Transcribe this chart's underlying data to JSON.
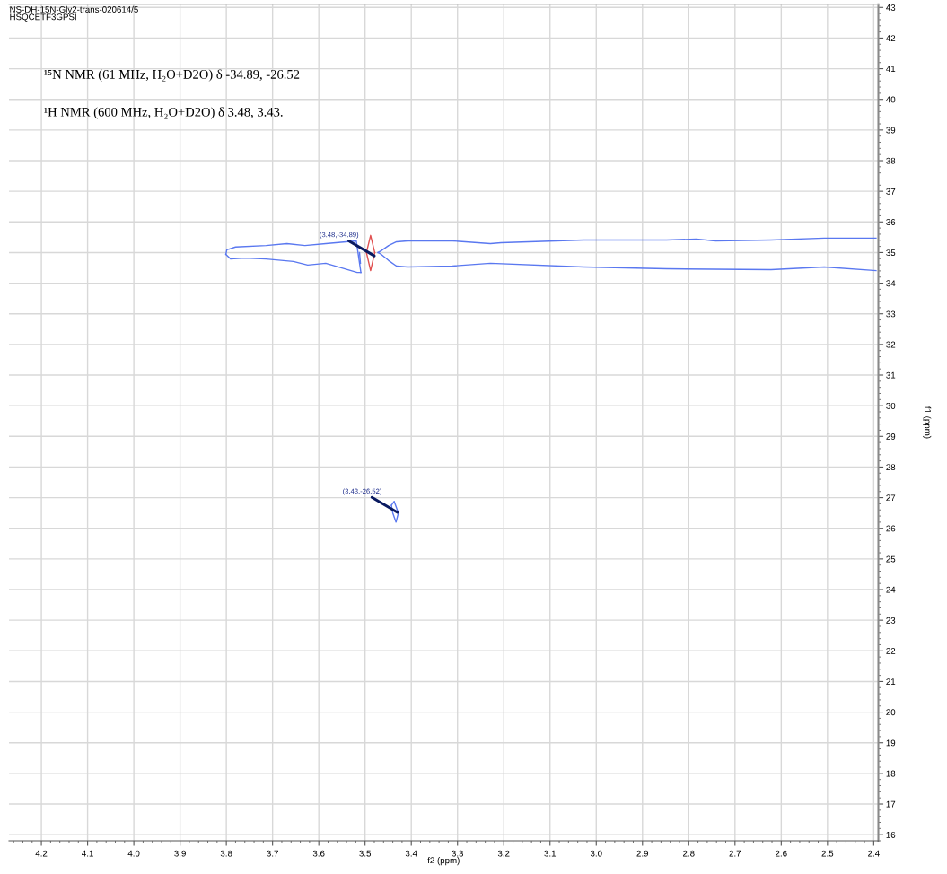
{
  "chart_data": {
    "type": "line",
    "xlabel": "f2 (ppm)",
    "ylabel": "f1 (ppm)",
    "xlim": [
      4.27,
      2.39
    ],
    "xticks": [
      4.2,
      4.1,
      {
        "value": 4.0,
        "label": "4.0"
      },
      3.9,
      3.8,
      3.7,
      3.6,
      3.5,
      3.4,
      3.3,
      3.2,
      3.1,
      {
        "value": 3.0,
        "label": "3.0"
      },
      2.9,
      2.8,
      2.7,
      2.6,
      2.5,
      2.4
    ],
    "ylim": [
      15.8,
      43.1
    ],
    "yticks": [
      16,
      17,
      18,
      19,
      20,
      21,
      22,
      23,
      24,
      25,
      26,
      27,
      28,
      29,
      30,
      31,
      32,
      33,
      34,
      35,
      36,
      37,
      38,
      39,
      40,
      41,
      42,
      43
    ],
    "grid": true,
    "marker": "none",
    "line_style": "solid",
    "series": [
      {
        "color": "#5a78f0",
        "x": [
          3.801,
          3.799,
          3.78,
          3.714,
          3.669,
          3.63,
          3.585,
          3.519,
          3.509
        ],
        "values": [
          34.94,
          35.09,
          35.18,
          35.23,
          35.29,
          35.23,
          35.29,
          35.38,
          34.35
        ]
      },
      {
        "color": "#5a78f0",
        "x": [
          3.801,
          3.791,
          3.76,
          3.714,
          3.655,
          3.624,
          3.585,
          3.517,
          3.509
        ],
        "values": [
          34.94,
          34.79,
          34.82,
          34.79,
          34.71,
          34.59,
          34.65,
          34.35,
          34.35
        ]
      },
      {
        "color": "#5a78f0",
        "x": [
          3.472,
          3.465,
          3.449,
          3.432,
          3.408,
          3.311,
          3.229,
          3.206,
          3.027,
          2.848,
          2.784,
          2.743,
          2.622,
          2.507,
          2.395
        ],
        "values": [
          35.0,
          35.06,
          35.23,
          35.35,
          35.38,
          35.38,
          35.29,
          35.32,
          35.41,
          35.41,
          35.44,
          35.38,
          35.41,
          35.47,
          35.47
        ]
      },
      {
        "color": "#5a78f0",
        "x": [
          3.472,
          3.465,
          3.449,
          3.432,
          3.408,
          3.311,
          3.229,
          3.027,
          2.848,
          2.622,
          2.507,
          2.395
        ],
        "values": [
          35.0,
          34.94,
          34.74,
          34.56,
          34.53,
          34.56,
          34.65,
          34.53,
          34.47,
          34.44,
          34.53,
          34.41
        ]
      },
      {
        "color": "#5a78f0",
        "x": [
          3.512,
          3.51
        ],
        "values": [
          35.0,
          34.65
        ]
      },
      {
        "color": "#e05050",
        "x": [
          3.497,
          3.488,
          3.479
        ],
        "values": [
          35.0,
          35.56,
          35.0
        ]
      },
      {
        "color": "#e05050",
        "x": [
          3.497,
          3.488,
          3.479
        ],
        "values": [
          35.0,
          34.41,
          35.0
        ]
      },
      {
        "color": "#5a78f0",
        "x": [
          3.443,
          3.437,
          3.428
        ],
        "values": [
          26.75,
          26.88,
          26.5
        ]
      },
      {
        "color": "#5a78f0",
        "x": [
          3.443,
          3.44,
          3.433,
          3.428
        ],
        "values": [
          26.75,
          26.5,
          26.2,
          26.5
        ]
      }
    ],
    "annotations": [
      "NS-DH-15N-Gly2-trans-020614/5",
      "HSQCETF3GPSI",
      "¹⁵N NMR (61 MHz, H₂O+D2O) δ -34.89, -26.52",
      "¹H NMR (600 MHz, H₂O+D2O) δ 3.48, 3.43.",
      {
        "text": "(3.48,-34.89)",
        "x": 3.48,
        "y": 34.89
      },
      {
        "text": "(3.43,-26.52)",
        "x": 3.43,
        "y": 26.52
      }
    ]
  }
}
